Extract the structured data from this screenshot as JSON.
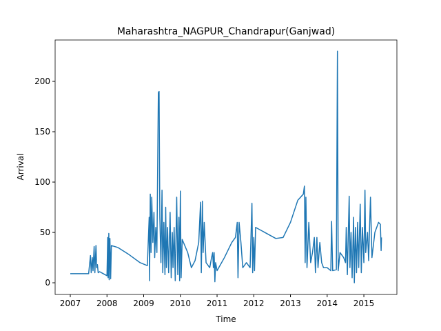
{
  "chart_data": {
    "type": "line",
    "title": "Maharashtra_NAGPUR_Chandrapur(Ganjwad)",
    "x_label": "Time",
    "y_label": "Arrival",
    "xlim": [
      2006.587,
      2015.9
    ],
    "xticks": [
      2007,
      2008,
      2009,
      2010,
      2011,
      2012,
      2013,
      2014,
      2015
    ],
    "ylim": [
      -11.6,
      241.1
    ],
    "yticks": [
      0,
      50,
      100,
      150,
      200
    ],
    "series": [
      {
        "color": "#1f77b4",
        "x": [
          2007.0,
          2007.5,
          2007.55,
          2007.57,
          2007.6,
          2007.62,
          2007.65,
          2007.67,
          2007.7,
          2007.72,
          2007.74,
          2007.76,
          2007.8,
          2007.9,
          2008.0,
          2008.02,
          2008.03,
          2008.05,
          2008.06,
          2008.08,
          2008.1,
          2008.12,
          2008.3,
          2008.6,
          2008.9,
          2009.1,
          2009.15,
          2009.16,
          2009.18,
          2009.2,
          2009.22,
          2009.25,
          2009.28,
          2009.3,
          2009.33,
          2009.36,
          2009.4,
          2009.42,
          2009.44,
          2009.47,
          2009.5,
          2009.52,
          2009.55,
          2009.58,
          2009.6,
          2009.62,
          2009.65,
          2009.68,
          2009.72,
          2009.75,
          2009.78,
          2009.8,
          2009.83,
          2009.86,
          2009.9,
          2009.93,
          2009.96,
          2009.98,
          2010.0,
          2010.02,
          2010.05,
          2010.2,
          2010.3,
          2010.4,
          2010.5,
          2010.55,
          2010.57,
          2010.6,
          2010.62,
          2010.65,
          2010.7,
          2010.8,
          2010.85,
          2010.88,
          2010.9,
          2010.92,
          2010.94,
          2010.96,
          2011.0,
          2011.2,
          2011.4,
          2011.5,
          2011.55,
          2011.57,
          2011.6,
          2011.65,
          2011.7,
          2011.8,
          2011.9,
          2011.95,
          2011.97,
          2012.0,
          2012.02,
          2012.05,
          2012.3,
          2012.6,
          2012.8,
          2013.0,
          2013.2,
          2013.35,
          2013.38,
          2013.4,
          2013.42,
          2013.45,
          2013.5,
          2013.55,
          2013.6,
          2013.65,
          2013.68,
          2013.72,
          2013.75,
          2013.8,
          2013.85,
          2013.9,
          2014.0,
          2014.1,
          2014.12,
          2014.15,
          2014.25,
          2014.28,
          2014.3,
          2014.35,
          2014.45,
          2014.5,
          2014.52,
          2014.55,
          2014.57,
          2014.6,
          2014.62,
          2014.65,
          2014.68,
          2014.72,
          2014.74,
          2014.77,
          2014.8,
          2014.83,
          2014.86,
          2014.9,
          2014.93,
          2014.96,
          2015.0,
          2015.03,
          2015.05,
          2015.1,
          2015.13,
          2015.18,
          2015.22,
          2015.3,
          2015.4,
          2015.45,
          2015.47,
          2015.48
        ],
        "values": [
          9,
          9,
          27,
          10,
          25,
          12,
          36,
          10,
          37,
          15,
          18,
          10,
          11,
          9,
          7,
          45,
          5,
          49,
          3,
          44,
          4,
          37,
          35,
          28,
          20,
          17,
          65,
          2,
          88,
          30,
          85,
          40,
          70,
          25,
          55,
          30,
          189,
          190,
          65,
          20,
          92,
          10,
          60,
          8,
          75,
          15,
          55,
          10,
          70,
          5,
          50,
          15,
          55,
          2,
          85,
          8,
          65,
          2,
          91,
          5,
          43,
          30,
          15,
          22,
          40,
          80,
          10,
          81,
          30,
          60,
          20,
          15,
          25,
          30,
          15,
          30,
          1,
          20,
          12,
          25,
          40,
          45,
          60,
          5,
          60,
          40,
          15,
          20,
          15,
          79,
          10,
          45,
          12,
          55,
          50,
          44,
          45,
          60,
          82,
          88,
          96,
          20,
          85,
          15,
          60,
          20,
          30,
          45,
          10,
          45,
          15,
          40,
          20,
          15,
          15,
          12,
          61,
          12,
          13,
          230,
          12,
          30,
          25,
          20,
          55,
          8,
          40,
          86,
          15,
          50,
          5,
          65,
          0,
          55,
          10,
          60,
          15,
          78,
          10,
          55,
          20,
          92,
          30,
          50,
          22,
          85,
          25,
          50,
          60,
          58,
          32,
          45
        ]
      }
    ]
  }
}
